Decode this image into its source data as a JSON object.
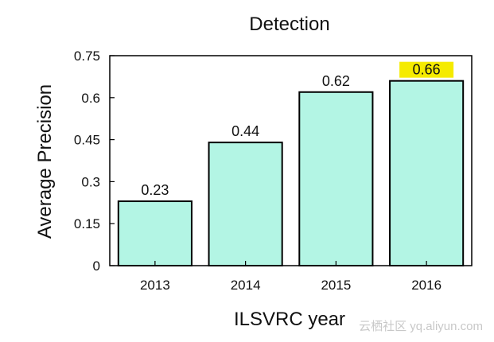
{
  "chart_data": {
    "type": "bar",
    "title": "Detection",
    "xlabel": "ILSVRC year",
    "ylabel": "Average Precision",
    "categories": [
      "2013",
      "2014",
      "2015",
      "2016"
    ],
    "values": [
      0.23,
      0.44,
      0.62,
      0.66
    ],
    "value_labels": [
      "0.23",
      "0.44",
      "0.62",
      "0.66"
    ],
    "highlighted_label_index": 3,
    "ylim": [
      0,
      0.75
    ],
    "yticks": [
      0,
      0.15,
      0.3,
      0.45,
      0.6,
      0.75
    ],
    "ytick_labels": [
      "0",
      "0.15",
      "0.3",
      "0.45",
      "0.6",
      "0.75"
    ],
    "bar_color": "#b3f5e4",
    "bar_edge_color": "#000000",
    "highlight_color": "#f5eb00",
    "grid": false
  },
  "watermark": "云栖社区 yq.aliyun.com"
}
